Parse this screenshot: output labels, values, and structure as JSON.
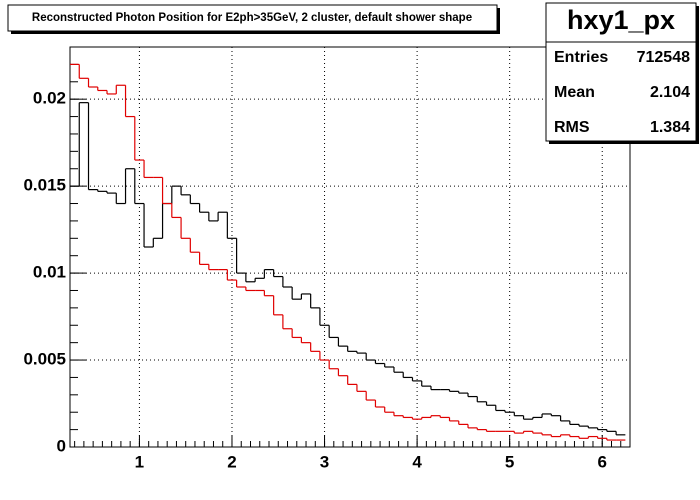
{
  "chart_data": {
    "type": "histogram",
    "title": "Reconstructed Photon Position for E2ph>35GeV, 2 cluster, default shower shape",
    "bins": [
      0.25,
      0.35,
      0.45,
      0.55,
      0.65,
      0.75,
      0.85,
      0.95,
      1.05,
      1.15,
      1.25,
      1.35,
      1.45,
      1.55,
      1.65,
      1.75,
      1.85,
      1.95,
      2.05,
      2.15,
      2.25,
      2.35,
      2.45,
      2.55,
      2.65,
      2.75,
      2.85,
      2.95,
      3.05,
      3.15,
      3.25,
      3.35,
      3.45,
      3.55,
      3.65,
      3.75,
      3.85,
      3.95,
      4.05,
      4.15,
      4.25,
      4.35,
      4.45,
      4.55,
      4.65,
      4.75,
      4.85,
      4.95,
      5.05,
      5.15,
      5.25,
      5.35,
      5.45,
      5.55,
      5.65,
      5.75,
      5.85,
      5.95,
      6.05,
      6.15,
      6.25
    ],
    "series": [
      {
        "color": "#000000",
        "values": [
          0.015,
          0.0198,
          0.0148,
          0.0147,
          0.0146,
          0.014,
          0.016,
          0.014,
          0.0115,
          0.012,
          0.014,
          0.015,
          0.0145,
          0.014,
          0.0135,
          0.013,
          0.0135,
          0.012,
          0.01,
          0.0095,
          0.0097,
          0.0102,
          0.0098,
          0.0092,
          0.0085,
          0.0088,
          0.008,
          0.007,
          0.0063,
          0.0058,
          0.0055,
          0.0054,
          0.005,
          0.0048,
          0.0046,
          0.0043,
          0.004,
          0.0038,
          0.0035,
          0.0033,
          0.0033,
          0.0032,
          0.0031,
          0.0029,
          0.0026,
          0.0024,
          0.0021,
          0.002,
          0.0018,
          0.0016,
          0.0017,
          0.0019,
          0.0018,
          0.0015,
          0.0013,
          0.0012,
          0.0011,
          0.001,
          0.0009,
          0.0007
        ]
      },
      {
        "color": "#e00000",
        "values": [
          0.022,
          0.0212,
          0.0207,
          0.0205,
          0.0203,
          0.0208,
          0.019,
          0.0165,
          0.0155,
          0.0155,
          0.014,
          0.0132,
          0.012,
          0.0112,
          0.0105,
          0.0102,
          0.0102,
          0.0096,
          0.0092,
          0.009,
          0.009,
          0.0087,
          0.0076,
          0.0068,
          0.0063,
          0.006,
          0.0055,
          0.005,
          0.0045,
          0.0041,
          0.0036,
          0.0032,
          0.0027,
          0.0023,
          0.002,
          0.0018,
          0.0017,
          0.0016,
          0.0017,
          0.0018,
          0.0017,
          0.0015,
          0.0013,
          0.0011,
          0.001,
          0.0009,
          0.0009,
          0.0009,
          0.0008,
          0.0009,
          0.0008,
          0.0007,
          0.0006,
          0.0007,
          0.0006,
          0.0005,
          0.0006,
          0.0005,
          0.0004,
          0.0004
        ]
      }
    ],
    "xlim": [
      0.25,
      6.3
    ],
    "ylim": [
      0,
      0.023
    ],
    "xticks": [
      1,
      2,
      3,
      4,
      5,
      6
    ],
    "yticks": [
      0,
      0.005,
      0.01,
      0.015,
      0.02
    ],
    "grid": true,
    "stats": {
      "name": "hxy1_px",
      "rows": [
        {
          "label": "Entries",
          "value": 712548
        },
        {
          "label": "Mean",
          "value": 2.104
        },
        {
          "label": "RMS",
          "value": 1.384
        }
      ]
    }
  }
}
